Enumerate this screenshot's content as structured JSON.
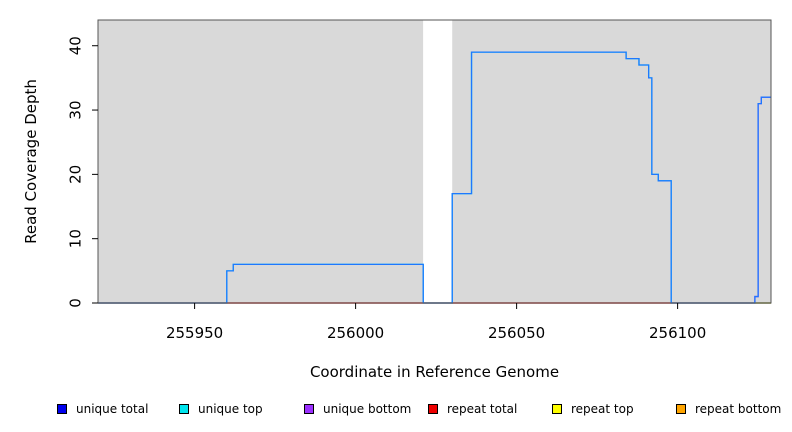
{
  "chart_data": {
    "type": "line",
    "title": "",
    "xlabel": "Coordinate in Reference Genome",
    "ylabel": "Read Coverage Depth",
    "xlim": [
      255920,
      256129
    ],
    "ylim": [
      0,
      44
    ],
    "xticks": [
      255950,
      256000,
      256050,
      256100
    ],
    "yticks": [
      0,
      10,
      20,
      30,
      40
    ],
    "grid": false,
    "background_regions": [
      {
        "x": [
          255920,
          256021
        ],
        "color": "#d9d9d9"
      },
      {
        "x": [
          256021,
          256030
        ],
        "color": "#ffffff"
      },
      {
        "x": [
          256030,
          256129
        ],
        "color": "#d9d9d9"
      }
    ],
    "legend_position": "bottom",
    "series": [
      {
        "name": "unique total",
        "color": "#0000ee",
        "step": true,
        "points": [
          [
            255920,
            0
          ],
          [
            255960,
            0
          ],
          [
            255960,
            5
          ],
          [
            255962,
            5
          ],
          [
            255962,
            6
          ],
          [
            256021,
            6
          ],
          [
            256021,
            0
          ],
          [
            256030,
            0
          ],
          [
            256030,
            17
          ],
          [
            256036,
            17
          ],
          [
            256036,
            39
          ],
          [
            256084,
            39
          ],
          [
            256084,
            38
          ],
          [
            256088,
            38
          ],
          [
            256088,
            37
          ],
          [
            256091,
            37
          ],
          [
            256091,
            35
          ],
          [
            256092,
            35
          ],
          [
            256092,
            20
          ],
          [
            256094,
            20
          ],
          [
            256094,
            19
          ],
          [
            256098,
            19
          ],
          [
            256098,
            0
          ],
          [
            256124,
            0
          ],
          [
            256124,
            1
          ],
          [
            256125,
            1
          ],
          [
            256125,
            31
          ],
          [
            256126,
            31
          ],
          [
            256126,
            32
          ],
          [
            256129,
            32
          ]
        ]
      },
      {
        "name": "unique top",
        "color": "#00e5ee",
        "step": true,
        "points": [
          [
            255920,
            0
          ],
          [
            255960,
            0
          ],
          [
            255960,
            5
          ],
          [
            255962,
            5
          ],
          [
            255962,
            6
          ],
          [
            256021,
            6
          ],
          [
            256021,
            0
          ],
          [
            256030,
            0
          ],
          [
            256030,
            17
          ],
          [
            256036,
            17
          ],
          [
            256036,
            39
          ],
          [
            256084,
            39
          ],
          [
            256084,
            38
          ],
          [
            256088,
            38
          ],
          [
            256088,
            37
          ],
          [
            256091,
            37
          ],
          [
            256091,
            35
          ],
          [
            256092,
            35
          ],
          [
            256092,
            20
          ],
          [
            256094,
            20
          ],
          [
            256094,
            19
          ],
          [
            256098,
            19
          ],
          [
            256098,
            0
          ],
          [
            256129,
            0
          ]
        ]
      },
      {
        "name": "unique bottom",
        "color": "#9b30ff",
        "step": true,
        "points": [
          [
            255920,
            0
          ],
          [
            256124,
            0
          ],
          [
            256124,
            1
          ],
          [
            256125,
            1
          ],
          [
            256125,
            31
          ],
          [
            256126,
            31
          ],
          [
            256126,
            32
          ],
          [
            256129,
            32
          ]
        ]
      },
      {
        "name": "repeat total",
        "color": "#ee0000",
        "step": true,
        "points": [
          [
            255920,
            0
          ],
          [
            256129,
            0
          ]
        ]
      },
      {
        "name": "repeat top",
        "color": "#ffff00",
        "step": true,
        "points": [
          [
            255920,
            0
          ],
          [
            256129,
            0
          ]
        ]
      },
      {
        "name": "repeat bottom",
        "color": "#ffa500",
        "step": true,
        "points": [
          [
            255920,
            0
          ],
          [
            256129,
            0
          ]
        ]
      }
    ],
    "legend": [
      {
        "label": "unique total",
        "color": "#0000ee"
      },
      {
        "label": "unique top",
        "color": "#00e5ee"
      },
      {
        "label": "unique bottom",
        "color": "#9b30ff"
      },
      {
        "label": "repeat total",
        "color": "#ee0000"
      },
      {
        "label": "repeat top",
        "color": "#ffff00"
      },
      {
        "label": "repeat bottom",
        "color": "#ffa500"
      }
    ]
  }
}
